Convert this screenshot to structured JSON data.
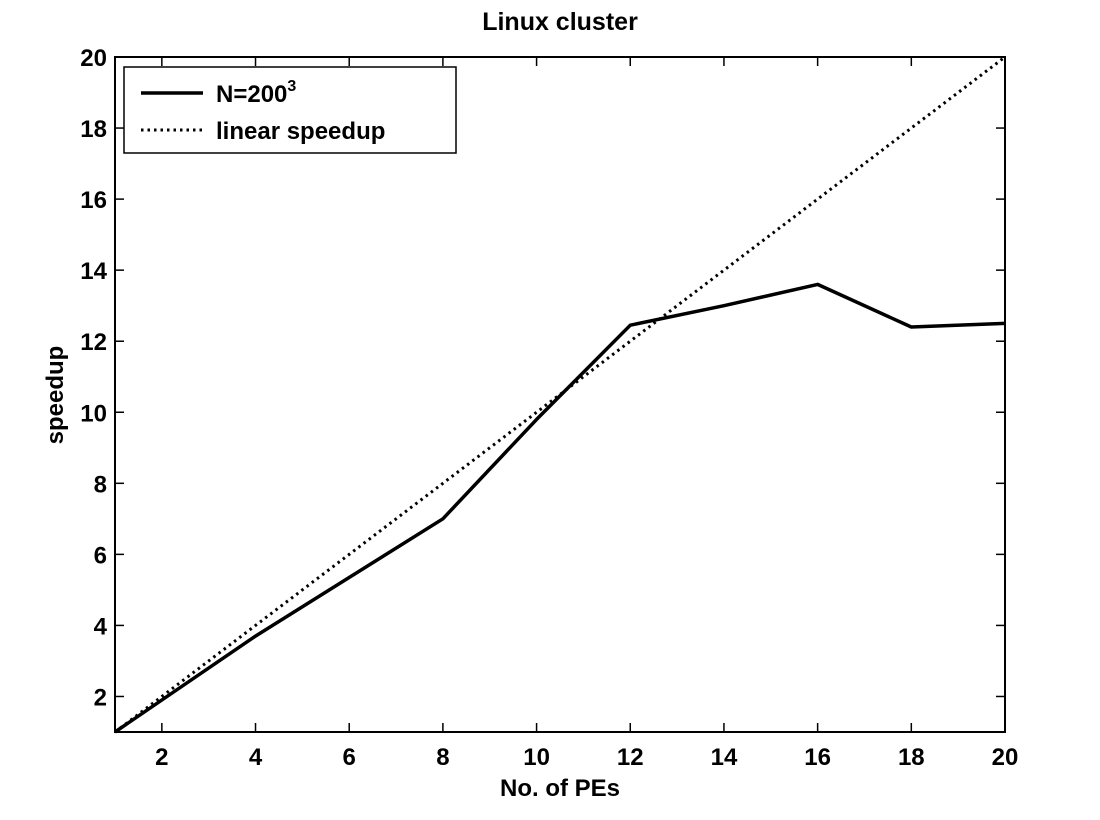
{
  "chart_data": {
    "type": "line",
    "title": "Linux cluster",
    "xlabel": "No. of PEs",
    "ylabel": "speedup",
    "xlim": [
      1,
      20
    ],
    "ylim": [
      1,
      20
    ],
    "xticks": [
      2,
      4,
      6,
      8,
      10,
      12,
      14,
      16,
      18,
      20
    ],
    "yticks": [
      2,
      4,
      6,
      8,
      10,
      12,
      14,
      16,
      18,
      20
    ],
    "grid": false,
    "legend_position": "top-left",
    "series": [
      {
        "name": "N=200",
        "name_superscript": "3",
        "style": "solid",
        "color": "#000000",
        "x": [
          1,
          4,
          8,
          10,
          12,
          14,
          16,
          18,
          20
        ],
        "y": [
          1,
          3.7,
          7.0,
          9.8,
          12.45,
          13.0,
          13.6,
          12.4,
          12.5
        ]
      },
      {
        "name": "linear speedup",
        "style": "dotted",
        "color": "#000000",
        "x": [
          1,
          20
        ],
        "y": [
          1,
          20
        ]
      }
    ]
  }
}
